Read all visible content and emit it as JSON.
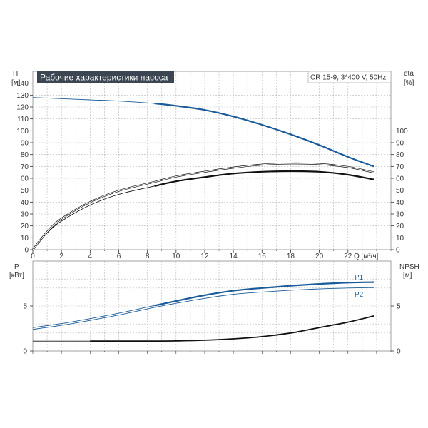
{
  "chart_data": [
    {
      "type": "line",
      "title": "Рабочие характеристики насоса",
      "subtitle": "CR 15-9, 3*400 V, 50Hz",
      "xlabel": "Q [м³/ч]",
      "ylabel_left": [
        "H",
        "[м]"
      ],
      "ylabel_right": [
        "eta",
        "[%]"
      ],
      "xlim": [
        0,
        25
      ],
      "x_ticks": [
        0,
        2,
        4,
        6,
        8,
        10,
        12,
        14,
        16,
        18,
        20,
        22
      ],
      "ylim_left": [
        0,
        150
      ],
      "y_ticks_left": [
        0,
        10,
        20,
        30,
        40,
        50,
        60,
        70,
        80,
        90,
        100,
        110,
        120,
        130,
        140
      ],
      "ylim_right": [
        0,
        150
      ],
      "y_ticks_right": [
        0,
        10,
        20,
        30,
        40,
        50,
        60,
        70,
        80,
        90,
        100
      ],
      "grid": true,
      "series": [
        {
          "axis": "left",
          "color": "#1a5b9a",
          "x": [
            0,
            2,
            4,
            6,
            8.5,
            10,
            12,
            14,
            16,
            18,
            20,
            22,
            23.8
          ],
          "y": [
            128,
            127,
            126,
            125,
            123,
            121,
            117.5,
            112,
            105,
            97,
            88,
            78,
            70
          ],
          "bold_from": 8.5
        },
        {
          "axis": "right",
          "color": "#111111",
          "x": [
            0,
            1,
            2,
            4,
            6,
            8.5,
            10,
            12,
            14,
            16,
            18,
            20,
            22,
            23.8
          ],
          "y": [
            0,
            14,
            24,
            37.5,
            46.5,
            53.5,
            57.5,
            61,
            64,
            65.5,
            66,
            65.5,
            63,
            59
          ],
          "bold_from": 8.5
        },
        {
          "axis": "right",
          "color": "#111111",
          "x": [
            0,
            1,
            2,
            4,
            6,
            8.5,
            10,
            12,
            14,
            16,
            18,
            20,
            22,
            23.8
          ],
          "y": [
            0,
            15,
            26,
            40,
            49.5,
            57,
            61.5,
            65.5,
            69,
            71.5,
            72.5,
            72,
            69.5,
            65
          ]
        }
      ]
    },
    {
      "type": "line",
      "xlim": [
        0,
        25
      ],
      "x_ticks": [
        0,
        2,
        4,
        6,
        8,
        10,
        12,
        14,
        16,
        18,
        20,
        22
      ],
      "ylabel_left": [
        "P",
        "[кВт]"
      ],
      "ylabel_right": [
        "NPSH",
        "[м]"
      ],
      "ylim_left": [
        0,
        10
      ],
      "y_ticks_left": [
        0,
        5
      ],
      "ylim_right": [
        0,
        10
      ],
      "y_ticks_right": [
        0,
        5
      ],
      "grid": true,
      "series": [
        {
          "name": "P1",
          "axis": "left",
          "color": "#1a5b9a",
          "x": [
            0,
            2,
            4,
            6,
            8.5,
            10,
            12,
            14,
            16,
            18,
            20,
            22,
            23.8
          ],
          "y": [
            2.6,
            3.05,
            3.6,
            4.2,
            5.05,
            5.55,
            6.2,
            6.7,
            7.0,
            7.25,
            7.45,
            7.6,
            7.65
          ],
          "bold_from": 8.5
        },
        {
          "name": "P2",
          "axis": "left",
          "color": "#1a5b9a",
          "x": [
            0,
            2,
            4,
            6,
            8.5,
            10,
            12,
            14,
            16,
            18,
            20,
            22,
            23.8
          ],
          "y": [
            2.4,
            2.85,
            3.4,
            4.0,
            4.85,
            5.3,
            5.85,
            6.3,
            6.55,
            6.75,
            6.9,
            7.0,
            7.05
          ]
        },
        {
          "axis": "right",
          "color": "#111111",
          "x": [
            0,
            4,
            6,
            8.5,
            10,
            12,
            14,
            16,
            18,
            20,
            22,
            23.8
          ],
          "y": [
            1.1,
            1.1,
            1.1,
            1.1,
            1.12,
            1.2,
            1.35,
            1.6,
            2.0,
            2.6,
            3.2,
            3.9
          ],
          "dim_until": 4
        }
      ]
    }
  ]
}
